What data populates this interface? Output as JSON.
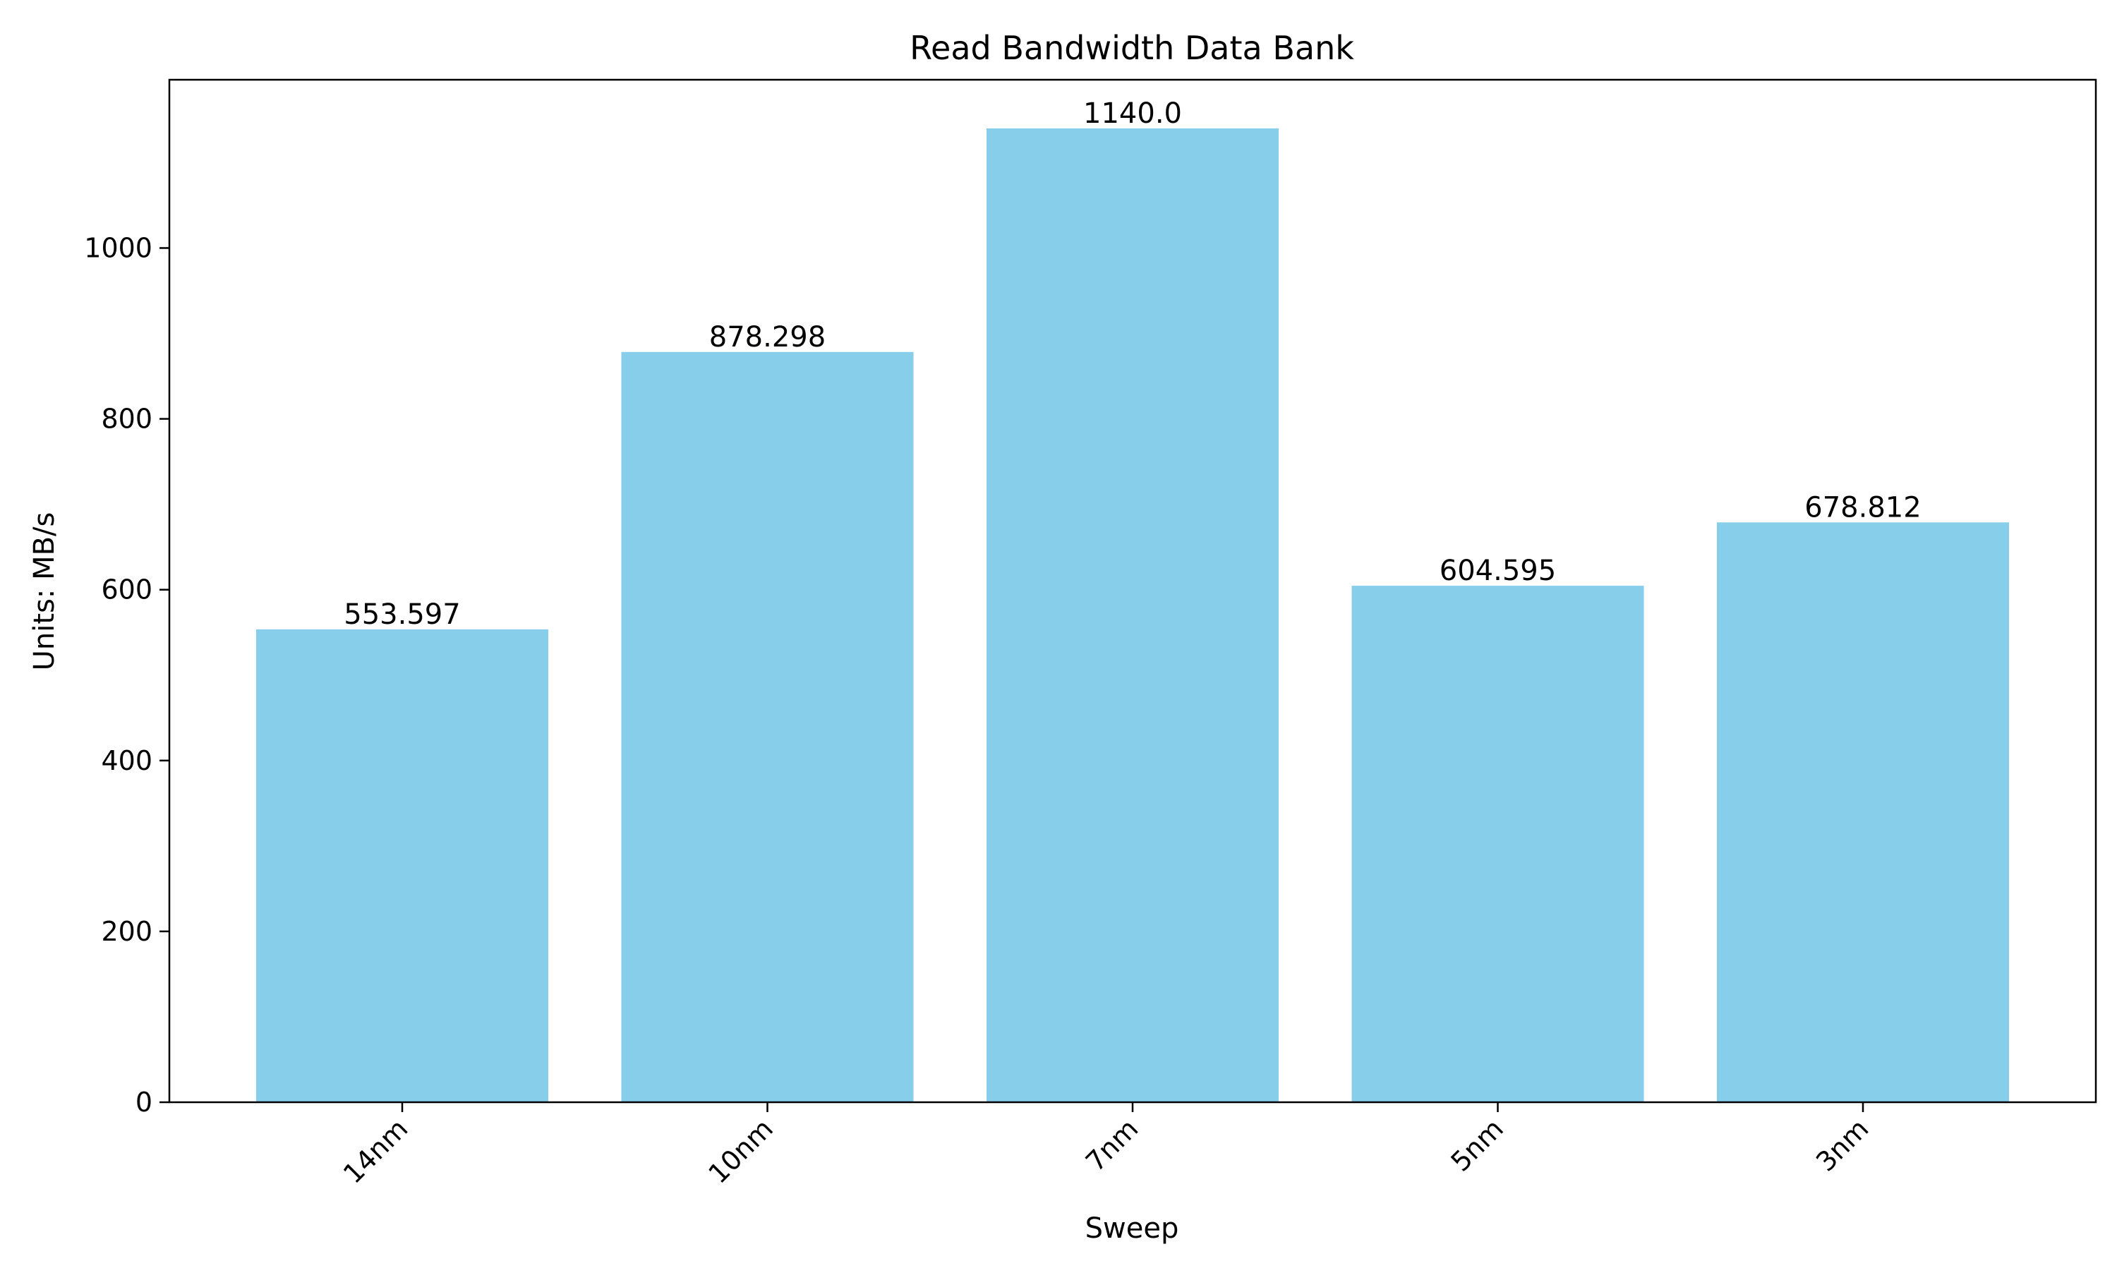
{
  "chart_data": {
    "type": "bar",
    "title": "Read Bandwidth Data Bank",
    "xlabel": "Sweep",
    "ylabel": "Units: MB/s",
    "categories": [
      "14nm",
      "10nm",
      "7nm",
      "5nm",
      "3nm"
    ],
    "values": [
      553.597,
      878.298,
      1140.0,
      604.595,
      678.812
    ],
    "value_labels": [
      "553.597",
      "878.298",
      "1140.0",
      "604.595",
      "678.812"
    ],
    "y_ticks": [
      0,
      200,
      400,
      600,
      800,
      1000
    ],
    "ylim": [
      0,
      1197
    ],
    "grid": false,
    "bar_color": "#87CEEB",
    "axis_color": "#000000"
  }
}
